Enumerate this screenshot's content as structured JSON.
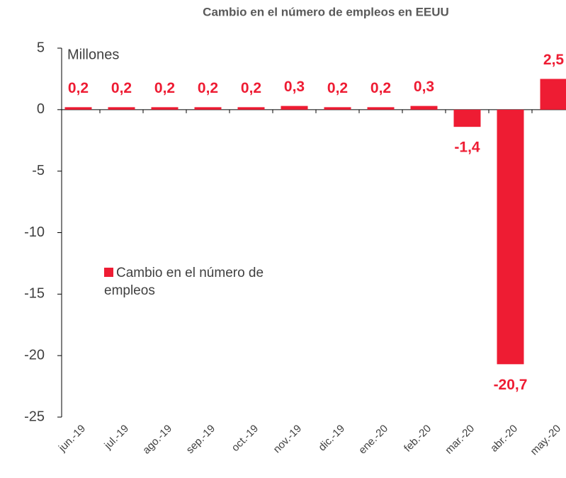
{
  "chart_data": {
    "type": "bar",
    "title": "Cambio en el número de empleos en EEUU",
    "y_label": "Millones",
    "categories": [
      "jun.-19",
      "jul.-19",
      "ago.-19",
      "sep.-19",
      "oct.-19",
      "nov.-19",
      "dic.-19",
      "ene.-20",
      "feb.-20",
      "mar.-20",
      "abr.-20",
      "may.-20"
    ],
    "series": [
      {
        "name": "Cambio en el número de empleos",
        "color": "#ee1c33",
        "values": [
          0.2,
          0.2,
          0.2,
          0.2,
          0.2,
          0.3,
          0.2,
          0.2,
          0.3,
          -1.4,
          -20.7,
          2.5
        ],
        "value_labels": [
          "0,2",
          "0,2",
          "0,2",
          "0,2",
          "0,2",
          "0,3",
          "0,2",
          "0,2",
          "0,3",
          "-1,4",
          "-20,7",
          "2,5"
        ]
      }
    ],
    "ylim": [
      -25,
      5
    ],
    "yticks": [
      5,
      0,
      -5,
      -10,
      -15,
      -20,
      -25
    ],
    "legend": "left"
  }
}
